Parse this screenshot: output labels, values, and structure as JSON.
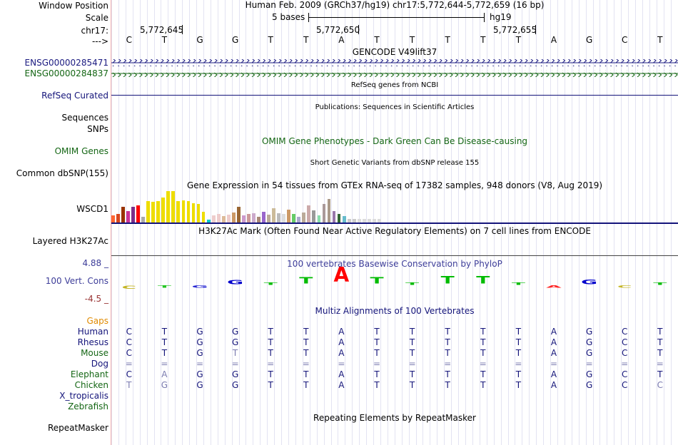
{
  "labels": {
    "window_position": "Window Position",
    "scale": "Scale",
    "chrom": "chr17:",
    "arrow": "--->",
    "gene1": "ENSG00000285471",
    "gene2": "ENSG00000284837",
    "refseq": "RefSeq Curated",
    "sequences": "Sequences",
    "snps": "SNPs",
    "omim": "OMIM Genes",
    "common_dbsnp": "Common dbSNP(155)",
    "wscd1": "WSCD1",
    "h3k27ac": "Layered H3K27Ac",
    "cons_max": "4.88 _",
    "vert_cons": "100 Vert. Cons",
    "cons_min": "-4.5 _",
    "gaps": "Gaps",
    "species": [
      "Human",
      "Rhesus",
      "Mouse",
      "Dog",
      "Elephant",
      "Chicken",
      "X_tropicalis",
      "Zebrafish"
    ],
    "repeatmasker": "RepeatMasker"
  },
  "header": {
    "position": "Human Feb. 2009 (GRCh37/hg19)   chr17:5,772,644-5,772,659 (16 bp)",
    "scale_text": "5 bases",
    "scale_db": "hg19",
    "ticks": [
      "5,772,645",
      "5,772,650",
      "5,772,655"
    ]
  },
  "bases": [
    "C",
    "T",
    "G",
    "G",
    "T",
    "T",
    "A",
    "T",
    "T",
    "T",
    "T",
    "T",
    "A",
    "G",
    "C",
    "T"
  ],
  "tracks": {
    "gencode": "GENCODE V49lift37",
    "refseq": "RefSeq genes from NCBI",
    "publications": "Publications: Sequences in Scientific Articles",
    "omim": "OMIM Gene Phenotypes - Dark Green Can Be Disease-causing",
    "dbsnp": "Short Genetic Variants from dbSNP release 155",
    "gtex": "Gene Expression in 54 tissues from GTEx RNA-seq of 17382 samples, 948 donors (V8, Aug 2019)",
    "h3k27ac": "H3K27Ac Mark (Often Found Near Active Regulatory Elements) on 7 cell lines from ENCODE",
    "phylop": "100 vertebrates Basewise Conservation by PhyloP",
    "multiz": "Multiz Alignments of 100 Vertebrates",
    "repeatmasker": "Repeating Elements by RepeatMasker"
  },
  "gtex_chart": {
    "type": "bar",
    "values": [
      10,
      12,
      22,
      16,
      22,
      24,
      8,
      30,
      29,
      30,
      35,
      44,
      44,
      30,
      31,
      30,
      27,
      26,
      15,
      4,
      10,
      12,
      9,
      11,
      14,
      22,
      10,
      12,
      13,
      8,
      15,
      11,
      20,
      13,
      12,
      18,
      12,
      8,
      14,
      24,
      17,
      10,
      26,
      33,
      16,
      12,
      9,
      5,
      5,
      5,
      5,
      5,
      5,
      5
    ],
    "colors": [
      "#ff6633",
      "#d9461f",
      "#993300",
      "#cc3399",
      "#7a2f8a",
      "#ff0000",
      "#aaaaaa",
      "#eedd00",
      "#eedd00",
      "#eedd00",
      "#eedd00",
      "#eedd00",
      "#eedd00",
      "#eedd00",
      "#eedd00",
      "#eedd00",
      "#eedd00",
      "#eedd00",
      "#eedd00",
      "#00cccc",
      "#eecccc",
      "#eecccc",
      "#ddbb99",
      "#eecccc",
      "#cc9966",
      "#996633",
      "#cc99cc",
      "#cc9999",
      "#ccaacc",
      "#aa8877",
      "#9966cc",
      "#bbaa99",
      "#ccbb99",
      "#bbbbbb",
      "#dddddd",
      "#cc9966",
      "#66cc66",
      "#aaaacc",
      "#bbaa99",
      "#ccaaaa",
      "#999999",
      "#88ddaa",
      "#aa9999",
      "#aa9988",
      "#9977aa",
      "#336633",
      "#66bbcc",
      "#cccccc",
      "#cccccc",
      "#dddddd",
      "#dddddd",
      "#dddddd",
      "#dddddd",
      "#dddddd"
    ]
  },
  "phylop_chart": {
    "type": "bar",
    "ymax": 4.88,
    "ymin": -4.5,
    "scores": [
      -0.8,
      -0.2,
      -0.3,
      1.0,
      0.5,
      1.6,
      3.6,
      1.6,
      0.5,
      1.8,
      1.8,
      0.3,
      -0.2,
      1.1,
      -0.5,
      0.2
    ]
  },
  "alignment": {
    "human": [
      "C",
      "T",
      "G",
      "G",
      "T",
      "T",
      "A",
      "T",
      "T",
      "T",
      "T",
      "T",
      "A",
      "G",
      "C",
      "T"
    ],
    "rhesus": [
      "C",
      "T",
      "G",
      "G",
      "T",
      "T",
      "A",
      "T",
      "T",
      "T",
      "T",
      "T",
      "A",
      "G",
      "C",
      "T"
    ],
    "mouse": [
      "C",
      "T",
      "G",
      "T",
      "T",
      "T",
      "A",
      "T",
      "T",
      "T",
      "T",
      "T",
      "A",
      "G",
      "C",
      "T"
    ],
    "dog": [
      "=",
      "=",
      "=",
      "=",
      "=",
      "=",
      "=",
      "=",
      "=",
      "=",
      "=",
      "=",
      "=",
      "=",
      "=",
      "="
    ],
    "elephant": [
      "C",
      "A",
      "G",
      "G",
      "T",
      "T",
      "A",
      "T",
      "T",
      "T",
      "T",
      "T",
      "A",
      "G",
      "C",
      "T"
    ],
    "chicken": [
      "T",
      "G",
      "G",
      "G",
      "T",
      "T",
      "A",
      "T",
      "T",
      "T",
      "T",
      "T",
      "A",
      "G",
      "C",
      "C"
    ]
  }
}
